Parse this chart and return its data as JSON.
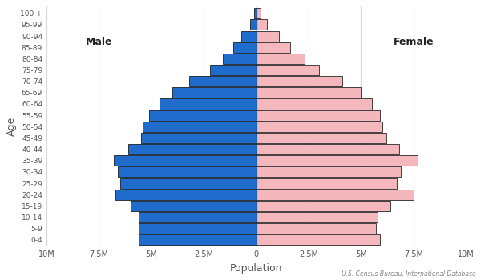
{
  "age_groups": [
    "0-4",
    "5-9",
    "10-14",
    "15-19",
    "20-24",
    "25-29",
    "30-34",
    "35-39",
    "40-44",
    "45-49",
    "50-54",
    "55-59",
    "60-64",
    "65-69",
    "70-74",
    "75-79",
    "80-84",
    "85-89",
    "90-94",
    "95-99",
    "100 +"
  ],
  "male": [
    5.6,
    5.6,
    5.6,
    6.0,
    6.7,
    6.5,
    6.6,
    6.8,
    6.1,
    5.5,
    5.4,
    5.1,
    4.6,
    4.0,
    3.2,
    2.2,
    1.6,
    1.1,
    0.7,
    0.3,
    0.1
  ],
  "female": [
    5.9,
    5.7,
    5.8,
    6.4,
    7.5,
    6.7,
    6.9,
    7.7,
    6.8,
    6.2,
    6.0,
    5.9,
    5.5,
    5.0,
    4.1,
    3.0,
    2.3,
    1.6,
    1.1,
    0.5,
    0.2
  ],
  "male_color": "#1f6ccc",
  "female_color": "#f4b8bc",
  "edge_color": "#000000",
  "xlim": 10,
  "xticks": [
    -10,
    -7.5,
    -5,
    -2.5,
    0,
    2.5,
    5,
    7.5,
    10
  ],
  "xtick_labels": [
    "10M",
    "7.5M",
    "5M",
    "2.5M",
    "0",
    "2.5M",
    "5M",
    "7.5M",
    "10M"
  ],
  "xlabel": "Population",
  "ylabel": "Age",
  "male_label": "Male",
  "female_label": "Female",
  "source_text": "U.S. Census Bureau, International Database",
  "background_color": "#ffffff",
  "grid_color": "#d8d8d8",
  "bar_height": 0.92,
  "edge_linewidth": 0.5
}
